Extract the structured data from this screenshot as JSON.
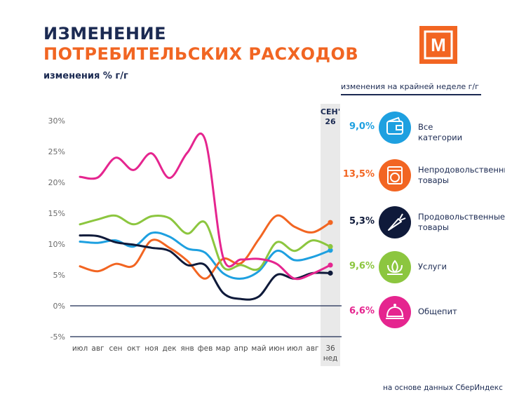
{
  "header": {
    "title_line1": "ИЗМЕНЕНИЕ",
    "title_line2": "ПОТРЕБИТЕЛЬСКИХ РАСХОДОВ",
    "y_caption": "изменения % г/г",
    "logo_letter": "М",
    "legend_caption": "изменения на крайней неделе г/г",
    "footer_source": "на основе данных СберИндекс"
  },
  "colors": {
    "navy": "#1b2a52",
    "orange": "#f26522",
    "highlight_band": "#e9e9e9"
  },
  "chart_data": {
    "type": "line",
    "x": [
      "июл",
      "авг",
      "сен",
      "окт",
      "ноя",
      "дек",
      "янв",
      "фев",
      "мар",
      "апр",
      "май",
      "июн",
      "июл",
      "авг",
      "36 нед"
    ],
    "highlight_label": "СЕН' 26",
    "last_tick_line1": "36",
    "last_tick_line2": "нед",
    "y_ticks": [
      -5,
      0,
      5,
      10,
      15,
      20,
      25,
      30
    ],
    "y_tick_labels": [
      "-5%",
      "0%",
      "5%",
      "10%",
      "15%",
      "20%",
      "25%",
      "30%"
    ],
    "ylim": [
      -5,
      30
    ],
    "grid": false,
    "series": [
      {
        "name": "Все категории",
        "color": "#1ea0e0",
        "last_value": "9,0%",
        "values": [
          10.4,
          10.2,
          10.6,
          9.6,
          11.8,
          11.2,
          9.3,
          8.6,
          5.3,
          4.4,
          5.6,
          8.9,
          7.4,
          7.9,
          9.0
        ]
      },
      {
        "name": "Непродовольственные товары",
        "color": "#f26522",
        "last_value": "13,5%",
        "values": [
          6.4,
          5.6,
          6.8,
          6.5,
          10.6,
          9.4,
          7.3,
          4.4,
          7.6,
          6.9,
          10.8,
          14.6,
          12.8,
          11.9,
          13.5
        ]
      },
      {
        "name": "Продовольственные товары",
        "color": "#0f1a3a",
        "last_value": "5,3%",
        "values": [
          11.4,
          11.3,
          10.3,
          9.9,
          9.4,
          8.9,
          6.6,
          6.6,
          2.1,
          1.1,
          1.5,
          5.0,
          4.4,
          5.3,
          5.3
        ]
      },
      {
        "name": "Услуги",
        "color": "#8cc63f",
        "last_value": "9,6%",
        "values": [
          13.2,
          14.0,
          14.6,
          13.2,
          14.5,
          14.2,
          11.7,
          13.5,
          6.3,
          6.6,
          6.0,
          10.3,
          8.9,
          10.6,
          9.6
        ]
      },
      {
        "name": "Общепит",
        "color": "#e5258f",
        "last_value": "6,6%",
        "values": [
          20.9,
          20.8,
          24.0,
          22.0,
          24.7,
          20.7,
          24.8,
          26.9,
          7.9,
          7.5,
          7.6,
          6.8,
          4.4,
          5.2,
          6.6
        ]
      }
    ]
  },
  "legend": [
    {
      "value": "9,0%",
      "color": "#1ea0e0",
      "icon": "wallet-icon",
      "label_line1": "Все категории",
      "label_line2": ""
    },
    {
      "value": "13,5%",
      "color": "#f26522",
      "icon": "washing-machine-icon",
      "label_line1": "Непродовольственные",
      "label_line2": "товары"
    },
    {
      "value": "5,3%",
      "color": "#0f1a3a",
      "icon": "carrot-icon",
      "label_line1": "Продовольственные",
      "label_line2": "товары"
    },
    {
      "value": "9,6%",
      "color": "#8cc63f",
      "icon": "lotus-icon",
      "label_line1": "Услуги",
      "label_line2": ""
    },
    {
      "value": "6,6%",
      "color": "#e5258f",
      "icon": "cloche-icon",
      "label_line1": "Общепит",
      "label_line2": ""
    }
  ]
}
